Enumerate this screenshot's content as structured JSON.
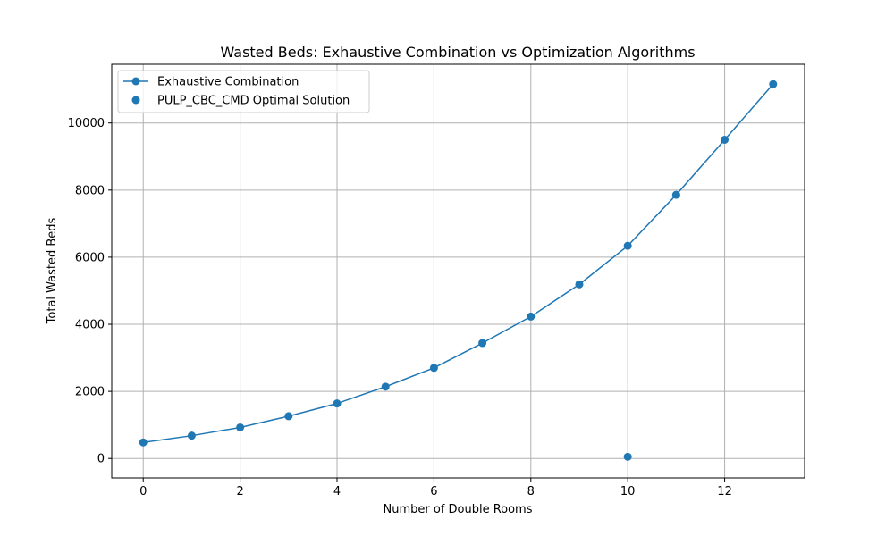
{
  "chart_data": {
    "type": "line",
    "title": "Wasted Beds: Exhaustive Combination vs Optimization Algorithms",
    "xlabel": "Number of Double Rooms",
    "ylabel": "Total Wasted Beds",
    "xlim": [
      -0.65,
      13.65
    ],
    "ylim": [
      -580,
      11750
    ],
    "xticks": [
      0,
      2,
      4,
      6,
      8,
      10,
      12
    ],
    "yticks": [
      0,
      2000,
      4000,
      6000,
      8000,
      10000
    ],
    "xtick_labels": [
      "0",
      "2",
      "4",
      "6",
      "8",
      "10",
      "12"
    ],
    "ytick_labels": [
      "0",
      "2000",
      "4000",
      "6000",
      "8000",
      "10000"
    ],
    "grid": true,
    "legend_position": "upper-left",
    "series": [
      {
        "name": "Exhaustive Combination",
        "kind": "line-with-markers",
        "color": "#1f77b4",
        "x": [
          0,
          1,
          2,
          3,
          4,
          5,
          6,
          7,
          8,
          9,
          10,
          11,
          12,
          13
        ],
        "y": [
          480,
          680,
          925,
          1260,
          1640,
          2140,
          2700,
          3440,
          4230,
          5190,
          6340,
          7860,
          9500,
          11160
        ]
      },
      {
        "name": "PULP_CBC_CMD Optimal Solution",
        "kind": "scatter",
        "color": "#1f77b4",
        "x": [
          10
        ],
        "y": [
          50
        ]
      }
    ]
  }
}
